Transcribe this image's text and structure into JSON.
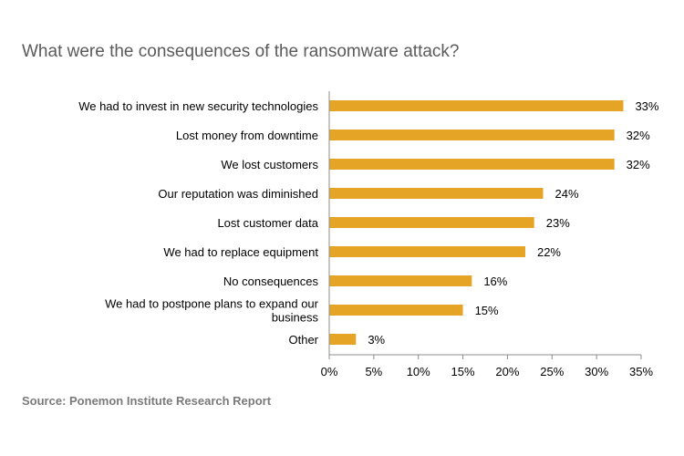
{
  "title": "What were the consequences of the ransomware attack?",
  "source": "Source: Ponemon Institute Research Report",
  "colors": {
    "bar": "#E6A427",
    "axis": "#8c8c8c"
  },
  "chart_data": {
    "type": "bar",
    "orientation": "horizontal",
    "title": "What were the consequences of the ransomware attack?",
    "categories": [
      "We had to invest in new security technologies",
      "Lost money from downtime",
      "We lost customers",
      "Our reputation was diminished",
      "Lost customer data",
      "We had to replace equipment",
      "No consequences",
      "We had to postpone plans to expand our business",
      "Other"
    ],
    "category_lines": [
      [
        "We had to invest in new security technologies"
      ],
      [
        "Lost money from downtime"
      ],
      [
        "We lost customers"
      ],
      [
        "Our reputation was diminished"
      ],
      [
        "Lost customer data"
      ],
      [
        "We had to replace equipment"
      ],
      [
        "No consequences"
      ],
      [
        "We had to postpone plans to expand our",
        "business"
      ],
      [
        "Other"
      ]
    ],
    "values": [
      33,
      32,
      32,
      24,
      23,
      22,
      16,
      15,
      3
    ],
    "value_labels": [
      "33%",
      "32%",
      "32%",
      "24%",
      "23%",
      "22%",
      "16%",
      "15%",
      "3%"
    ],
    "xlim": [
      0,
      35
    ],
    "xticks": [
      0,
      5,
      10,
      15,
      20,
      25,
      30,
      35
    ],
    "xtick_labels": [
      "0%",
      "5%",
      "10%",
      "15%",
      "20%",
      "25%",
      "30%",
      "35%"
    ],
    "grid": false,
    "legend": "none"
  }
}
